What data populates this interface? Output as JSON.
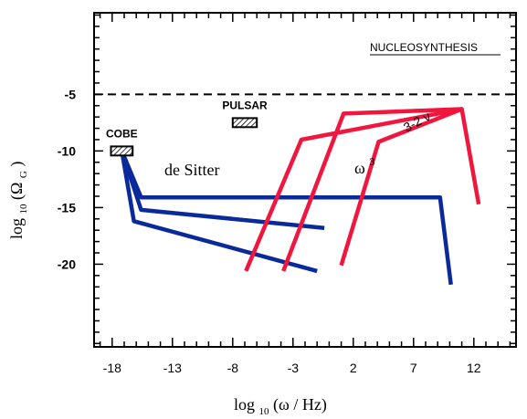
{
  "chart_data": {
    "type": "line",
    "title": "",
    "xlabel": {
      "text": "log",
      "sub": "10",
      "rest": " (ω / Hz)"
    },
    "ylabel": {
      "text": "log",
      "sub": "10",
      "pre": " (Ω",
      "sub2": "G",
      "post": ")"
    },
    "xlim": [
      -19.5,
      15.5
    ],
    "ylim": [
      -27.3,
      2.2
    ],
    "x_ticks": [
      -18,
      -13,
      -8,
      -3,
      2,
      7,
      12
    ],
    "x_tick_labels": [
      "-18",
      "-13",
      "-8",
      "-3",
      "2",
      "7",
      "12"
    ],
    "y_ticks": [
      -5,
      -10,
      -15,
      -20
    ],
    "y_tick_labels": [
      "-5",
      "-10",
      "-15",
      "-20"
    ],
    "grid": false,
    "colors": {
      "blue": "#0a2a9c",
      "red": "#f0163e",
      "dash": "#000000"
    },
    "reference_lines": [
      {
        "label": "NUCLEOSYNTHESIS",
        "y": -5,
        "style": "dashed",
        "color": "#000000"
      }
    ],
    "boxes": [
      {
        "label": "COBE",
        "x": [
          -18.1,
          -16.3
        ],
        "y": [
          -10.4,
          -9.6
        ]
      },
      {
        "label": "PULSAR",
        "x": [
          -8.0,
          -6.0
        ],
        "y": [
          -7.9,
          -7.1
        ]
      }
    ],
    "series": [
      {
        "color": "#0a2a9c",
        "points": [
          [
            -17.2,
            -10.0
          ],
          [
            -15.6,
            -14.1
          ],
          [
            9.2,
            -14.1
          ],
          [
            10.1,
            -21.8
          ]
        ]
      },
      {
        "color": "#0a2a9c",
        "points": [
          [
            -17.2,
            -10.0
          ],
          [
            -15.6,
            -15.2
          ],
          [
            -0.4,
            -16.8
          ]
        ]
      },
      {
        "color": "#0a2a9c",
        "points": [
          [
            -17.2,
            -10.0
          ],
          [
            -16.2,
            -16.2
          ],
          [
            -1.0,
            -20.6
          ]
        ]
      },
      {
        "color": "#f0163e",
        "points": [
          [
            -6.9,
            -20.6
          ],
          [
            -2.3,
            -9.0
          ],
          [
            11.0,
            -6.3
          ]
        ]
      },
      {
        "color": "#f0163e",
        "points": [
          [
            -3.8,
            -20.6
          ],
          [
            1.2,
            -6.7
          ],
          [
            11.0,
            -6.3
          ]
        ]
      },
      {
        "color": "#f0163e",
        "points": [
          [
            1.0,
            -20.1
          ],
          [
            4.1,
            -9.2
          ],
          [
            11.0,
            -6.3
          ],
          [
            12.4,
            -14.7
          ]
        ]
      }
    ],
    "annotations": {
      "de_sitter": "de Sitter",
      "omega_cubed_base": "ω",
      "omega_cubed_exp": "3",
      "red_slope": "3-2 ν"
    }
  }
}
